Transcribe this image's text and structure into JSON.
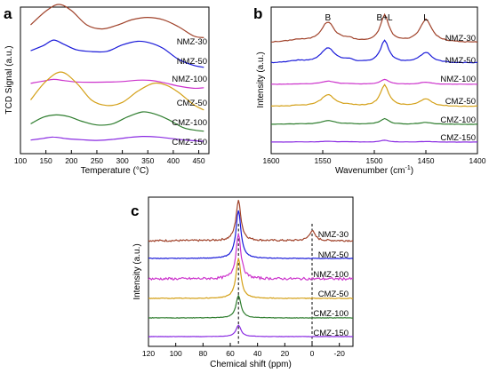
{
  "chart_data": [
    {
      "panel": "a",
      "type": "line",
      "xlabel": "Temperature (°C)",
      "ylabel": "TCD Signal (a.u.)",
      "xlim": [
        100,
        470
      ],
      "xticks": [
        100,
        150,
        200,
        250,
        300,
        350,
        400,
        450
      ],
      "series": [
        {
          "name": "NMZ-30",
          "color": "#A0422A",
          "x": [
            120,
            150,
            175,
            200,
            230,
            260,
            290,
            320,
            350,
            380,
            410,
            440,
            460
          ],
          "y": [
            0.55,
            0.86,
            0.99,
            0.86,
            0.55,
            0.44,
            0.53,
            0.66,
            0.71,
            0.65,
            0.49,
            0.3,
            0.25
          ]
        },
        {
          "name": "NMZ-50",
          "color": "#1A1AD9",
          "x": [
            120,
            145,
            165,
            185,
            210,
            240,
            270,
            300,
            330,
            355,
            380,
            410,
            440,
            460
          ],
          "y": [
            0.5,
            0.62,
            0.73,
            0.63,
            0.52,
            0.48,
            0.5,
            0.62,
            0.7,
            0.67,
            0.55,
            0.33,
            0.2,
            0.17
          ]
        },
        {
          "name": "NMZ-100",
          "color": "#CC33CC",
          "x": [
            120,
            145,
            165,
            185,
            210,
            240,
            270,
            300,
            330,
            355,
            380,
            410,
            440,
            460
          ],
          "y": [
            0.4,
            0.5,
            0.55,
            0.52,
            0.46,
            0.43,
            0.44,
            0.49,
            0.52,
            0.5,
            0.43,
            0.32,
            0.24,
            0.22
          ]
        },
        {
          "name": "CMZ-50",
          "color": "#D4A017",
          "x": [
            120,
            150,
            180,
            210,
            240,
            270,
            300,
            330,
            360,
            385,
            410,
            440,
            460
          ],
          "y": [
            0.28,
            0.58,
            0.72,
            0.55,
            0.28,
            0.18,
            0.24,
            0.42,
            0.54,
            0.52,
            0.4,
            0.2,
            0.12
          ]
        },
        {
          "name": "CMZ-100",
          "color": "#2E7D2E",
          "x": [
            120,
            145,
            170,
            195,
            220,
            250,
            280,
            310,
            340,
            365,
            390,
            420,
            445,
            460
          ],
          "y": [
            0.2,
            0.33,
            0.38,
            0.33,
            0.24,
            0.18,
            0.2,
            0.33,
            0.43,
            0.4,
            0.28,
            0.12,
            0.06,
            0.05
          ]
        },
        {
          "name": "CMZ-150",
          "color": "#8A2BE2",
          "x": [
            120,
            145,
            165,
            190,
            220,
            250,
            280,
            310,
            340,
            370,
            400,
            430,
            460
          ],
          "y": [
            0.05,
            0.12,
            0.16,
            0.12,
            0.08,
            0.07,
            0.08,
            0.13,
            0.17,
            0.16,
            0.11,
            0.05,
            0.02
          ]
        }
      ]
    },
    {
      "panel": "b",
      "type": "line",
      "xlabel": "Wavenumber (cm",
      "xlabel_sup": "-1",
      "xlabel_end": ")",
      "ylabel": "Intensity (a.u.)",
      "xlim": [
        1600,
        1400
      ],
      "xticks": [
        1600,
        1550,
        1500,
        1450,
        1400
      ],
      "peaks": [
        {
          "label": "B",
          "x": 1545
        },
        {
          "label": "B+L",
          "x": 1490
        },
        {
          "label": "L",
          "x": 1450
        }
      ],
      "series": [
        {
          "name": "NMZ-30",
          "color": "#A0422A",
          "peak_heights": [
            0.75,
            1.0,
            0.85
          ]
        },
        {
          "name": "NMZ-50",
          "color": "#1A1AD9",
          "peak_heights": [
            0.65,
            0.95,
            0.45
          ]
        },
        {
          "name": "NMZ-100",
          "color": "#CC33CC",
          "peak_heights": [
            0.3,
            0.45,
            0.2
          ]
        },
        {
          "name": "CMZ-50",
          "color": "#D4A017",
          "peak_heights": [
            0.55,
            1.0,
            0.35
          ]
        },
        {
          "name": "CMZ-100",
          "color": "#2E7D2E",
          "peak_heights": [
            0.3,
            0.45,
            0.15
          ]
        },
        {
          "name": "CMZ-150",
          "color": "#8A2BE2",
          "peak_heights": [
            0.12,
            0.25,
            0.08
          ]
        }
      ]
    },
    {
      "panel": "c",
      "type": "line",
      "xlabel": "Chemical shift (ppm)",
      "ylabel": "Intensity (a.u.)",
      "xlim": [
        120,
        -30
      ],
      "xticks": [
        120,
        100,
        80,
        60,
        40,
        20,
        0,
        -20
      ],
      "reference_lines": [
        54,
        0
      ],
      "series": [
        {
          "name": "NMZ-30",
          "color": "#A0422A",
          "peak_54": 1.0,
          "peak_0": 0.25,
          "noisy": true
        },
        {
          "name": "NMZ-50",
          "color": "#1A1AD9",
          "peak_54": 0.9,
          "peak_0": 0.0,
          "noisy": false
        },
        {
          "name": "NMZ-100",
          "color": "#CC33CC",
          "peak_54": 0.85,
          "peak_0": 0.0,
          "noisy": true
        },
        {
          "name": "CMZ-50",
          "color": "#D4A017",
          "peak_54": 0.75,
          "peak_0": 0.0,
          "noisy": false
        },
        {
          "name": "CMZ-100",
          "color": "#2E7D2E",
          "peak_54": 0.6,
          "peak_0": 0.0,
          "noisy": false
        },
        {
          "name": "CMZ-150",
          "color": "#8A2BE2",
          "peak_54": 0.5,
          "peak_0": 0.0,
          "noisy": false
        }
      ]
    }
  ]
}
